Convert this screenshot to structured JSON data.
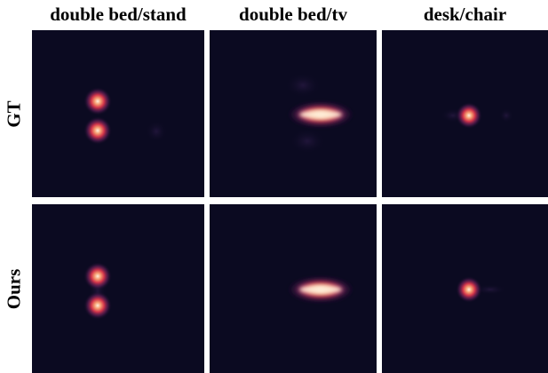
{
  "columns": [
    {
      "label": "double bed/stand"
    },
    {
      "label": "double bed/tv"
    },
    {
      "label": "desk/chair"
    }
  ],
  "rows": [
    {
      "label": "GT"
    },
    {
      "label": "Ours"
    }
  ],
  "colors": {
    "background": "#0b0a21",
    "glow_outer": "#6b1f5a",
    "glow_mid": "#d2344a",
    "glow_inner": "#f59c6f",
    "core": "#fff1dc"
  }
}
